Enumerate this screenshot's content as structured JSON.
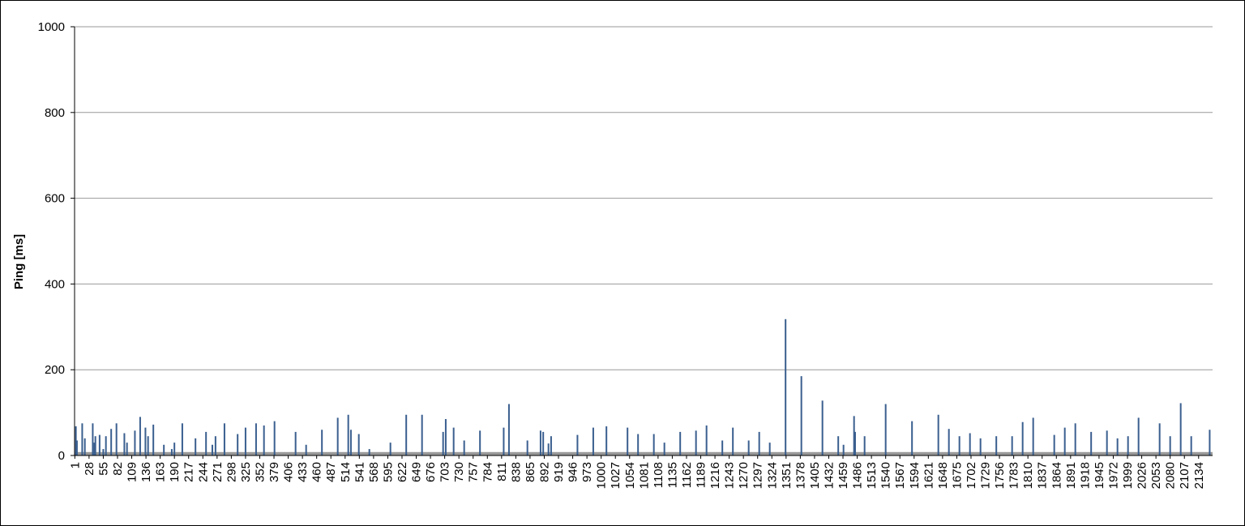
{
  "chart_data": {
    "type": "bar",
    "title": "",
    "xlabel": "",
    "ylabel": "Ping [ms]",
    "ylim": [
      0,
      1000
    ],
    "yticks": [
      0,
      200,
      400,
      600,
      800,
      1000
    ],
    "x_range": [
      1,
      2160
    ],
    "x_tick_labels": [
      1,
      28,
      55,
      82,
      109,
      136,
      163,
      190,
      217,
      244,
      271,
      298,
      325,
      352,
      379,
      406,
      433,
      460,
      487,
      514,
      541,
      568,
      595,
      622,
      649,
      676,
      703,
      730,
      757,
      784,
      811,
      838,
      865,
      892,
      919,
      946,
      973,
      1000,
      1027,
      1054,
      1081,
      1108,
      1135,
      1162,
      1189,
      1216,
      1243,
      1270,
      1297,
      1324,
      1351,
      1378,
      1405,
      1432,
      1459,
      1486,
      1513,
      1540,
      1567,
      1594,
      1621,
      1648,
      1675,
      1702,
      1729,
      1756,
      1783,
      1810,
      1837,
      1864,
      1891,
      1918,
      1945,
      1972,
      1999,
      2026,
      2053,
      2080,
      2107,
      2134
    ],
    "grid": true,
    "legend": "none",
    "bar_color": "#3a5f8f",
    "baseline_band_color": "#999999",
    "baseline_band_value": 8,
    "series": [
      {
        "x": [
          3,
          5,
          15,
          20,
          35,
          38,
          40,
          48,
          55,
          60,
          70,
          80,
          95,
          100,
          115,
          125,
          135,
          140,
          150,
          170,
          185,
          190,
          205,
          230,
          250,
          262,
          268,
          285,
          310,
          325,
          345,
          360,
          380,
          420,
          440,
          470,
          500,
          520,
          525,
          540,
          560,
          600,
          630,
          660,
          700,
          705,
          720,
          740,
          770,
          815,
          825,
          860,
          885,
          890,
          900,
          905,
          955,
          985,
          1010,
          1050,
          1070,
          1100,
          1120,
          1150,
          1180,
          1200,
          1230,
          1250,
          1280,
          1300,
          1320,
          1350,
          1380,
          1420,
          1450,
          1460,
          1480,
          1482,
          1500,
          1540,
          1590,
          1640,
          1660,
          1680,
          1700,
          1720,
          1750,
          1780,
          1800,
          1820,
          1860,
          1880,
          1900,
          1930,
          1960,
          1980,
          2000,
          2020,
          2060,
          2080,
          2100,
          2120,
          2155
        ],
        "values": [
          68,
          35,
          75,
          40,
          75,
          30,
          45,
          48,
          15,
          45,
          62,
          75,
          52,
          30,
          58,
          90,
          65,
          45,
          72,
          25,
          15,
          30,
          75,
          40,
          55,
          25,
          45,
          75,
          50,
          65,
          75,
          70,
          80,
          55,
          25,
          60,
          88,
          95,
          60,
          50,
          15,
          30,
          95,
          95,
          55,
          85,
          65,
          35,
          58,
          65,
          120,
          35,
          58,
          55,
          28,
          45,
          48,
          65,
          68,
          65,
          50,
          50,
          30,
          55,
          58,
          70,
          35,
          65,
          35,
          55,
          30,
          318,
          185,
          128,
          45,
          25,
          92,
          55,
          45,
          120,
          80,
          95,
          62,
          45,
          52,
          40,
          45,
          45,
          78,
          88,
          48,
          65,
          75,
          55,
          58,
          40,
          45,
          88,
          75,
          45,
          122,
          45,
          60
        ]
      }
    ]
  }
}
